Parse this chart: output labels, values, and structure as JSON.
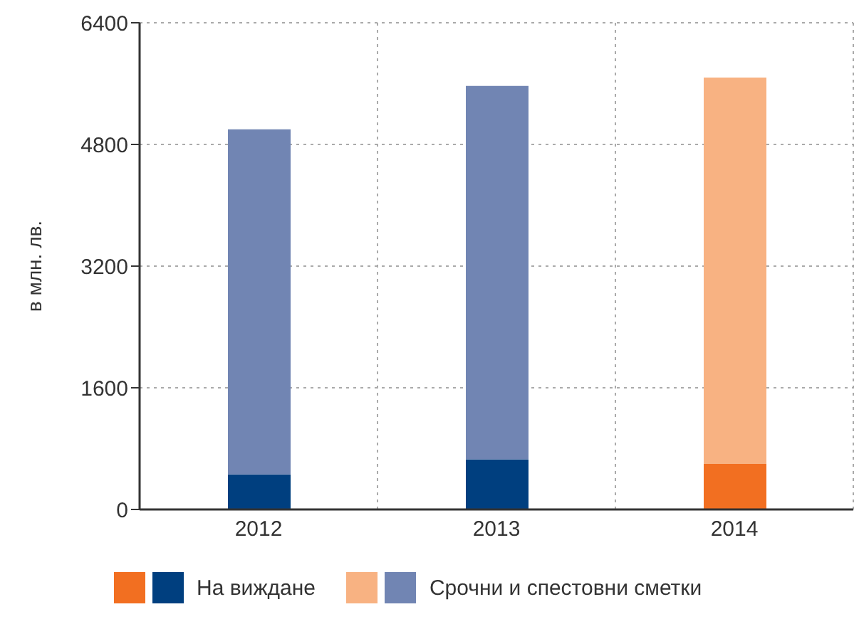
{
  "chart_data": {
    "type": "bar",
    "stacked": true,
    "ylabel": "в млн. лв.",
    "categories": [
      "2012",
      "2013",
      "2014"
    ],
    "series": [
      {
        "name": "На виждане",
        "colors": [
          "#003f7f",
          "#003f7f",
          "#f26f21"
        ],
        "values": [
          460,
          660,
          600
        ]
      },
      {
        "name": "Срочни и спестовни сметки",
        "colors": [
          "#7185b3",
          "#7185b3",
          "#f8b282"
        ],
        "values": [
          4540,
          4910,
          5080
        ]
      }
    ],
    "ylim": [
      0,
      6400
    ],
    "yticks": [
      0,
      1600,
      3200,
      4800,
      6400
    ],
    "grid": true,
    "legend": "bottom"
  }
}
